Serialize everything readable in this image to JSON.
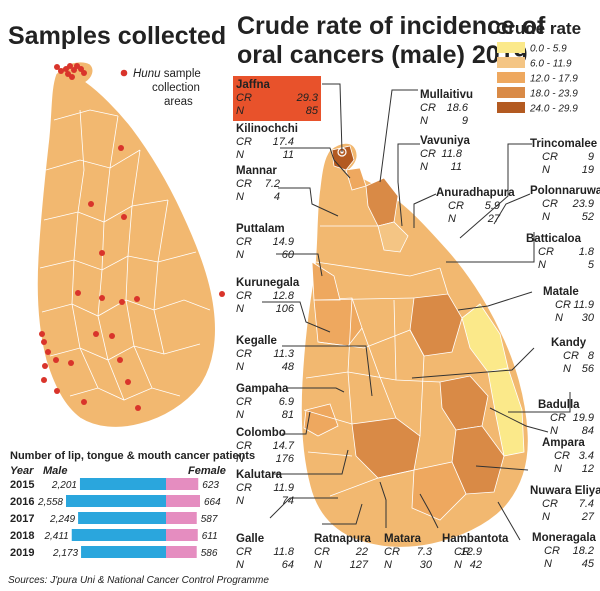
{
  "left_panel": {
    "title": "Samples collected",
    "legend_label_italic": "Hunu",
    "legend_label_rest_line1": " sample",
    "legend_label_line2": "collection",
    "legend_label_line3": "areas",
    "dot_color": "#d9342b",
    "map_fill": "#f2b870"
  },
  "right_panel": {
    "title_line1": "Crude rate of incidence of",
    "title_line2": "oral cancers (male) 2019",
    "legend_title": "Crude rate",
    "legend": [
      {
        "label": "0.0 - 5.9",
        "color": "#fbe98a"
      },
      {
        "label": "6.0 - 11.9",
        "color": "#f4c584"
      },
      {
        "label": "12.0 - 17.9",
        "color": "#eea85f"
      },
      {
        "label": "18.0 - 23.9",
        "color": "#d98a46"
      },
      {
        "label": "24.0 - 29.9",
        "color": "#b35a21"
      }
    ],
    "cr_label": "CR",
    "n_label": "N",
    "districts": [
      {
        "name": "Jaffna",
        "cr": "29.3",
        "n": "85",
        "highlight": true
      },
      {
        "name": "Kilinochchi",
        "cr": "17.4",
        "n": "11"
      },
      {
        "name": "Mannar",
        "cr": "7.2",
        "n": "4"
      },
      {
        "name": "Puttalam",
        "cr": "14.9",
        "n": "60"
      },
      {
        "name": "Kurunegala",
        "cr": "12.8",
        "n": "106"
      },
      {
        "name": "Kegalle",
        "cr": "11.3",
        "n": "48"
      },
      {
        "name": "Gampaha",
        "cr": "6.9",
        "n": "81"
      },
      {
        "name": "Colombo",
        "cr": "14.7",
        "n": "176"
      },
      {
        "name": "Kalutara",
        "cr": "11.9",
        "n": "74"
      },
      {
        "name": "Galle",
        "cr": "11.8",
        "n": "64"
      },
      {
        "name": "Ratnapura",
        "cr": "22",
        "n": "127"
      },
      {
        "name": "Matara",
        "cr": "7.3",
        "n": "30"
      },
      {
        "name": "Hambantota",
        "cr": "12.9",
        "n": "42"
      },
      {
        "name": "Moneragala",
        "cr": "18.2",
        "n": "45"
      },
      {
        "name": "Nuwara Eliya",
        "cr": "7.4",
        "n": "27"
      },
      {
        "name": "Ampara",
        "cr": "3.4",
        "n": "12"
      },
      {
        "name": "Badulla",
        "cr": "19.9",
        "n": "84"
      },
      {
        "name": "Kandy",
        "cr": "8",
        "n": "56"
      },
      {
        "name": "Matale",
        "cr": "11.9",
        "n": "30"
      },
      {
        "name": "Batticaloa",
        "cr": "1.8",
        "n": "5"
      },
      {
        "name": "Polonnaruwa",
        "cr": "23.9",
        "n": "52"
      },
      {
        "name": "Trincomalee",
        "cr": "9",
        "n": "19"
      },
      {
        "name": "Anuradhapura",
        "cr": "5.9",
        "n": "27"
      },
      {
        "name": "Vavuniya",
        "cr": "11.8",
        "n": "11"
      },
      {
        "name": "Mullaitivu",
        "cr": "18.6",
        "n": "9"
      }
    ]
  },
  "patients_chart": {
    "title": "Number of lip, tongue & mouth cancer patients",
    "year_header": "Year",
    "male_header": "Male",
    "female_header": "Female",
    "male_color": "#2aa6dd",
    "female_color": "#e58dc0",
    "rows": [
      {
        "year": "2015",
        "male": 2201,
        "female": 623
      },
      {
        "year": "2016",
        "male": 2558,
        "female": 664
      },
      {
        "year": "2017",
        "male": 2249,
        "female": 587
      },
      {
        "year": "2018",
        "male": 2411,
        "female": 611
      },
      {
        "year": "2019",
        "male": 2173,
        "female": 586
      }
    ]
  },
  "chart_data": {
    "type": "bar",
    "title": "Number of lip, tongue & mouth cancer patients",
    "categories": [
      "2015",
      "2016",
      "2017",
      "2018",
      "2019"
    ],
    "series": [
      {
        "name": "Male",
        "values": [
          2201,
          2558,
          2249,
          2411,
          2173
        ]
      },
      {
        "name": "Female",
        "values": [
          623,
          664,
          587,
          611,
          586
        ]
      }
    ]
  },
  "sources": "Sources: J'pura Uni & National Cancer Control Programme"
}
